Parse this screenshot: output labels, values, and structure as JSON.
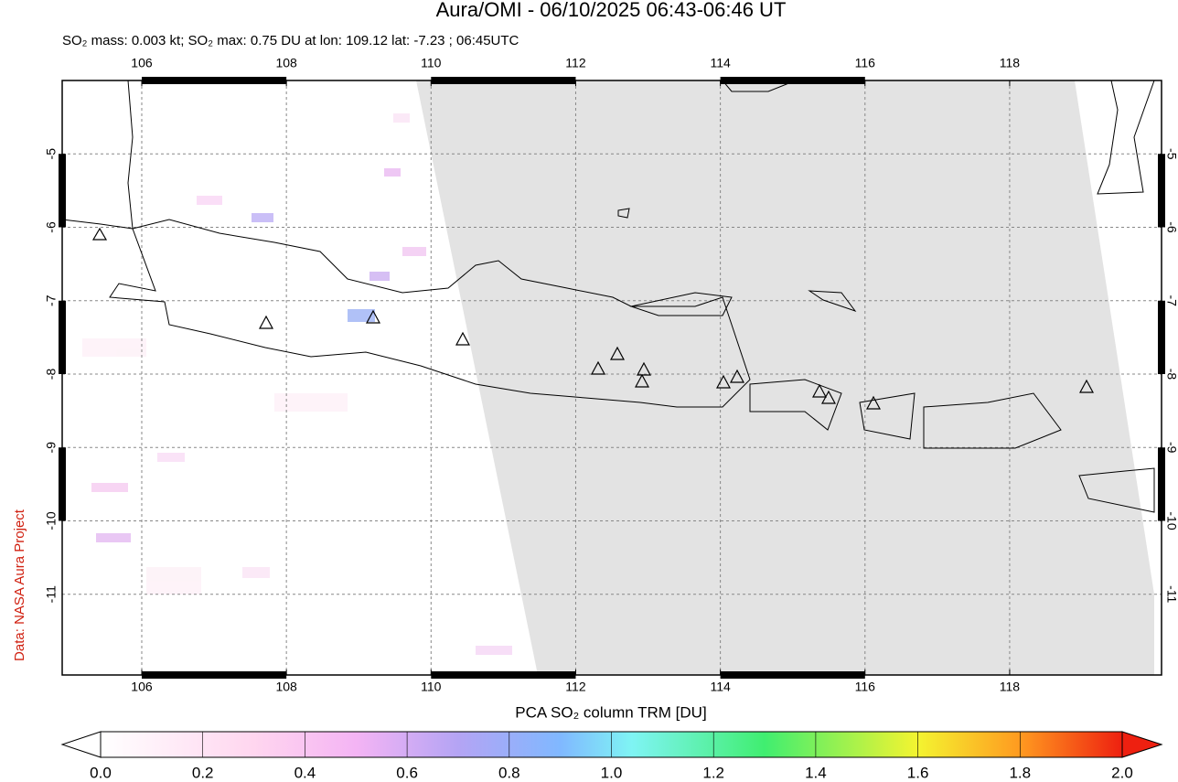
{
  "title": "Aura/OMI - 06/10/2025 06:43-06:46 UT",
  "subtitle": "SO₂ mass: 0.003 kt; SO₂ max: 0.75 DU at lon: 109.12 lat: -7.23 ; 06:45UTC",
  "credit": "Data: NASA Aura Project",
  "map": {
    "xlim": [
      104.9,
      120.1
    ],
    "ylim": [
      -12.1,
      -4.0
    ],
    "xticks": [
      106,
      108,
      110,
      112,
      114,
      116,
      118
    ],
    "yticks": [
      -5,
      -6,
      -7,
      -8,
      -9,
      -10,
      -11
    ],
    "grid": true
  },
  "colorbar": {
    "label": "PCA SO₂ column TRM [DU]",
    "clim": [
      0,
      2
    ],
    "ticks": [
      {
        "value": 0,
        "label": "0.0"
      },
      0.2,
      0.4,
      0.6,
      0.8,
      {
        "value": 1,
        "label": "1.0"
      },
      1.2,
      1.4,
      1.6,
      1.8,
      {
        "value": 2,
        "label": "2.0"
      }
    ]
  }
}
